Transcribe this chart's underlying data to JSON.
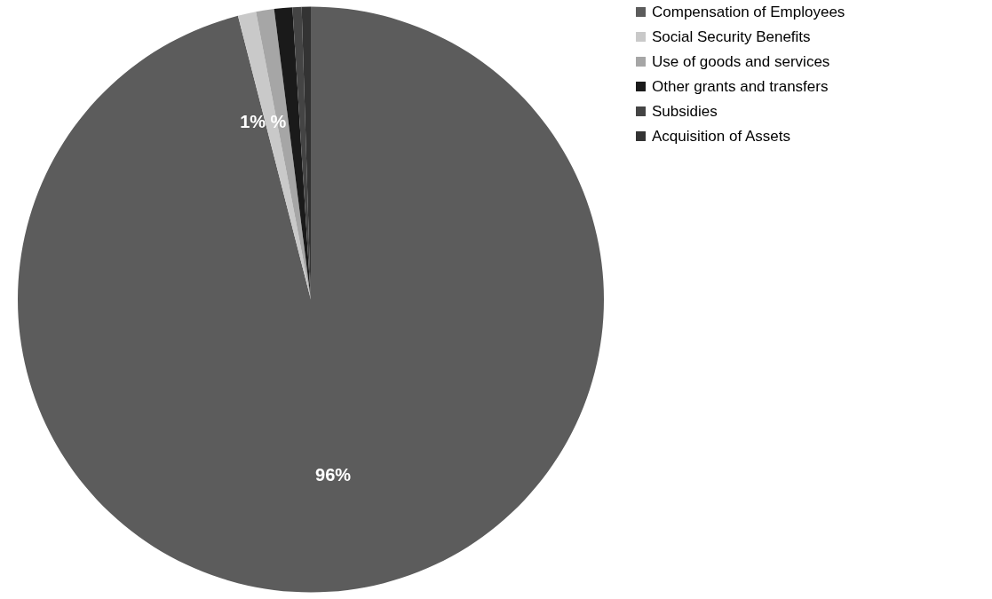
{
  "chart_data": {
    "type": "pie",
    "categories": [
      "Compensation of Employees",
      "Social Security Benefits",
      "Use of goods and services",
      "Other grants and transfers",
      "Subsidies",
      "Acquisition of Assets"
    ],
    "values": [
      96,
      1,
      1,
      1,
      0.5,
      0.5
    ],
    "colors": [
      "#5c5c5c",
      "#c9c9c9",
      "#a6a6a6",
      "#1a1a1a",
      "#444444",
      "#333333"
    ],
    "value_labels": [
      "96%",
      "1% %",
      null,
      null,
      null,
      null
    ],
    "legend": "right"
  }
}
